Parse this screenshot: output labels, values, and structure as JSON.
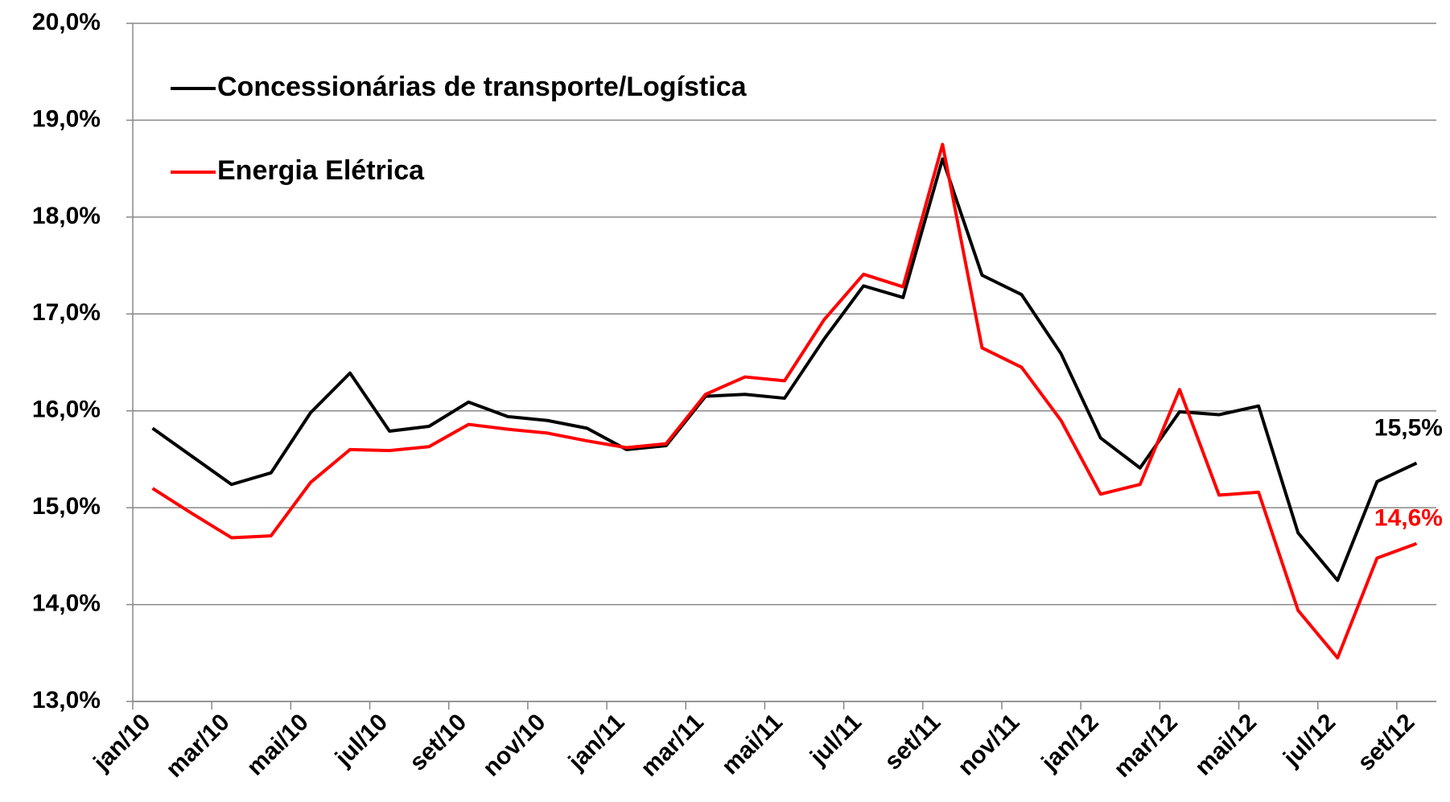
{
  "chart_data": {
    "type": "line",
    "categories": [
      "jan/10",
      null,
      "mar/10",
      null,
      "mai/10",
      null,
      "jul/10",
      null,
      "set/10",
      null,
      "nov/10",
      null,
      "jan/11",
      null,
      "mar/11",
      null,
      "mai/11",
      null,
      "jul/11",
      null,
      "set/11",
      null,
      "nov/11",
      null,
      "jan/12",
      null,
      "mar/12",
      null,
      "mai/12",
      null,
      "jul/12",
      null,
      "set/12"
    ],
    "series": [
      {
        "name": "Concessionárias de transporte/Logística",
        "color": "#000000",
        "values": [
          15.82,
          15.53,
          15.24,
          15.36,
          15.98,
          16.39,
          15.79,
          15.84,
          16.09,
          15.94,
          15.9,
          15.82,
          15.6,
          15.64,
          16.15,
          16.17,
          16.13,
          16.74,
          17.29,
          17.17,
          18.6,
          17.4,
          17.2,
          16.59,
          15.72,
          15.41,
          15.99,
          15.96,
          16.05,
          14.74,
          14.25,
          15.27,
          15.46
        ],
        "value_labels": [
          null,
          null,
          null,
          null,
          null,
          null,
          null,
          null,
          null,
          null,
          null,
          null,
          null,
          null,
          null,
          null,
          null,
          null,
          null,
          null,
          null,
          null,
          null,
          null,
          null,
          null,
          null,
          null,
          null,
          null,
          null,
          null,
          "15,5%"
        ]
      },
      {
        "name": "Energia Elétrica",
        "color": "#ff0000",
        "values": [
          15.2,
          14.94,
          14.69,
          14.71,
          15.26,
          15.6,
          15.59,
          15.63,
          15.86,
          15.81,
          15.77,
          15.69,
          15.62,
          15.66,
          16.17,
          16.35,
          16.31,
          16.94,
          17.41,
          17.28,
          18.75,
          16.65,
          16.45,
          15.9,
          15.14,
          15.24,
          16.22,
          15.13,
          15.16,
          13.94,
          13.45,
          14.48,
          14.63
        ],
        "value_labels": [
          null,
          null,
          null,
          null,
          null,
          null,
          null,
          null,
          null,
          null,
          null,
          null,
          null,
          null,
          null,
          null,
          null,
          null,
          null,
          null,
          null,
          null,
          null,
          null,
          null,
          null,
          null,
          null,
          null,
          null,
          null,
          null,
          "14,6%"
        ]
      }
    ],
    "ylim": [
      13,
      20
    ],
    "yticks": [
      {
        "value": 13,
        "label": "13,0%"
      },
      {
        "value": 14,
        "label": "14,0%"
      },
      {
        "value": 15,
        "label": "15,0%"
      },
      {
        "value": 16,
        "label": "16,0%"
      },
      {
        "value": 17,
        "label": "17,0%"
      },
      {
        "value": 18,
        "label": "18,0%"
      },
      {
        "value": 19,
        "label": "19,0%"
      },
      {
        "value": 20,
        "label": "20,0%"
      }
    ],
    "grid": true,
    "legend": "top-left"
  }
}
